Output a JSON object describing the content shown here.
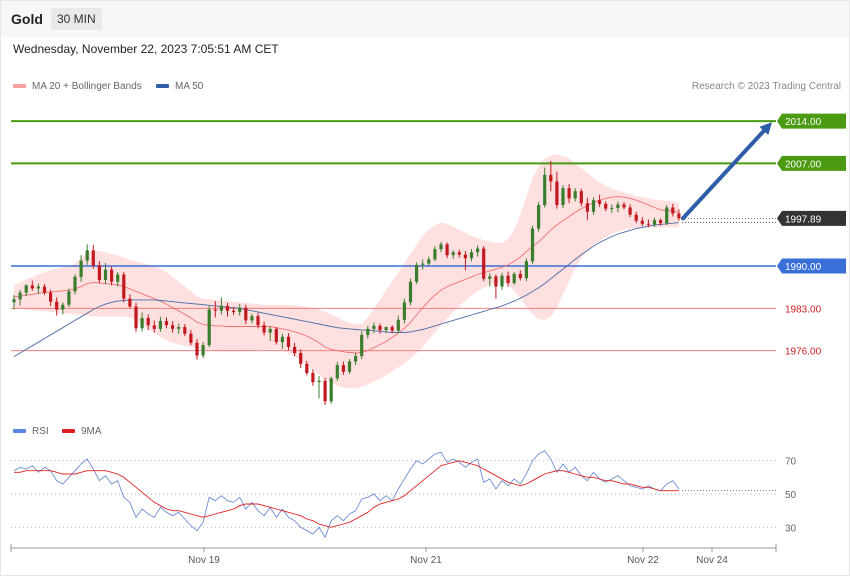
{
  "header": {
    "instrument": "Gold",
    "timeframe": "30 MIN",
    "datetime": "Wednesday, November 22, 2023 7:05:51 AM CET"
  },
  "legend": {
    "ma_bb": "MA 20 + Bollinger Bands",
    "ma50": "MA 50",
    "rsi": "RSI",
    "rsi_ma": "9MA"
  },
  "credit": "Research © 2023 Trading Central",
  "colors": {
    "up": "#3a7d2c",
    "down": "#c2191f",
    "resistance": "#4a9a12",
    "support_red": "#f08080",
    "pivot_blue": "#3a6fd8",
    "ma50": "#4a6aa8",
    "bands": "#ffd6d6",
    "rsi": "#6d8fd8",
    "rsi_ma": "#e02020",
    "arrow": "#2f5ea8",
    "price_tag": "#333333"
  },
  "chart_data": {
    "type": "candlestick",
    "ylim": [
      1966.5,
      2016.5
    ],
    "x_ticks": [
      "Nov 19",
      "Nov 21",
      "Nov 22",
      "Nov 24"
    ],
    "levels": [
      {
        "label": "2014.00",
        "value": 2014.0,
        "kind": "resistance"
      },
      {
        "label": "2007.00",
        "value": 2007.0,
        "kind": "resistance"
      },
      {
        "label": "1997.89",
        "value": 1997.89,
        "kind": "last"
      },
      {
        "label": "1990.00",
        "value": 1990.0,
        "kind": "pivot"
      },
      {
        "label": "1983.00",
        "value": 1983.0,
        "kind": "support"
      },
      {
        "label": "1976.00",
        "value": 1976.0,
        "kind": "support"
      }
    ],
    "forecast_arrow": {
      "from": 1997.9,
      "to": 2014.0
    },
    "candles": [
      [
        1984.0,
        1985.2,
        1982.8,
        1984.5
      ],
      [
        1984.5,
        1986.0,
        1983.5,
        1985.6
      ],
      [
        1985.6,
        1987.0,
        1985.0,
        1986.8
      ],
      [
        1986.8,
        1987.6,
        1985.9,
        1986.3
      ],
      [
        1986.3,
        1987.1,
        1985.4,
        1986.6
      ],
      [
        1986.6,
        1987.0,
        1985.2,
        1985.6
      ],
      [
        1985.6,
        1986.1,
        1983.4,
        1984.1
      ],
      [
        1984.1,
        1984.8,
        1981.8,
        1982.8
      ],
      [
        1982.8,
        1984.0,
        1982.0,
        1983.6
      ],
      [
        1983.6,
        1986.3,
        1983.2,
        1985.8
      ],
      [
        1985.8,
        1988.6,
        1985.3,
        1988.2
      ],
      [
        1988.2,
        1991.8,
        1987.4,
        1990.9
      ],
      [
        1990.9,
        1993.6,
        1990.2,
        1992.6
      ],
      [
        1992.6,
        1993.5,
        1989.6,
        1990.1
      ],
      [
        1990.1,
        1990.8,
        1987.2,
        1987.7
      ],
      [
        1987.7,
        1990.5,
        1987.0,
        1989.4
      ],
      [
        1989.4,
        1989.9,
        1986.8,
        1987.4
      ],
      [
        1987.4,
        1989.0,
        1986.6,
        1988.6
      ],
      [
        1988.6,
        1989.0,
        1984.0,
        1984.6
      ],
      [
        1984.6,
        1985.3,
        1983.0,
        1983.3
      ],
      [
        1983.3,
        1983.9,
        1979.1,
        1979.7
      ],
      [
        1979.7,
        1982.3,
        1979.2,
        1981.4
      ],
      [
        1981.4,
        1982.0,
        1979.4,
        1980.2
      ],
      [
        1980.2,
        1981.0,
        1979.0,
        1979.6
      ],
      [
        1979.6,
        1981.6,
        1979.1,
        1980.9
      ],
      [
        1980.9,
        1981.5,
        1979.7,
        1980.2
      ],
      [
        1980.2,
        1980.9,
        1979.0,
        1979.6
      ],
      [
        1979.6,
        1980.5,
        1978.8,
        1979.9
      ],
      [
        1979.9,
        1980.4,
        1978.4,
        1978.8
      ],
      [
        1978.8,
        1979.4,
        1976.9,
        1977.3
      ],
      [
        1977.3,
        1977.9,
        1974.5,
        1975.2
      ],
      [
        1975.2,
        1977.4,
        1974.8,
        1976.9
      ],
      [
        1976.9,
        1983.4,
        1976.6,
        1982.8
      ],
      [
        1982.8,
        1984.2,
        1981.5,
        1982.6
      ],
      [
        1982.6,
        1984.8,
        1982.0,
        1983.4
      ],
      [
        1983.4,
        1983.9,
        1981.6,
        1982.6
      ],
      [
        1982.6,
        1983.2,
        1981.9,
        1982.4
      ],
      [
        1982.4,
        1983.7,
        1981.8,
        1983.1
      ],
      [
        1983.1,
        1983.6,
        1980.4,
        1981.0
      ],
      [
        1981.0,
        1982.1,
        1980.5,
        1981.7
      ],
      [
        1981.7,
        1982.2,
        1979.7,
        1980.2
      ],
      [
        1980.2,
        1980.8,
        1978.5,
        1979.0
      ],
      [
        1979.0,
        1980.0,
        1977.6,
        1979.6
      ],
      [
        1979.6,
        1979.9,
        1977.0,
        1977.4
      ],
      [
        1977.4,
        1978.8,
        1976.3,
        1978.3
      ],
      [
        1978.3,
        1978.9,
        1976.1,
        1976.6
      ],
      [
        1976.6,
        1977.3,
        1975.1,
        1975.6
      ],
      [
        1975.6,
        1976.2,
        1973.1,
        1973.8
      ],
      [
        1973.8,
        1974.3,
        1971.9,
        1972.3
      ],
      [
        1972.3,
        1972.9,
        1970.2,
        1970.8
      ],
      [
        1970.8,
        1971.8,
        1968.1,
        1971.0
      ],
      [
        1971.0,
        1971.5,
        1967.0,
        1967.6
      ],
      [
        1967.6,
        1971.7,
        1967.2,
        1971.4
      ],
      [
        1971.4,
        1974.1,
        1971.0,
        1973.6
      ],
      [
        1973.6,
        1974.2,
        1972.0,
        1972.5
      ],
      [
        1972.5,
        1974.6,
        1972.2,
        1974.2
      ],
      [
        1974.2,
        1975.6,
        1973.6,
        1975.1
      ],
      [
        1975.1,
        1979.2,
        1974.6,
        1978.6
      ],
      [
        1978.6,
        1980.1,
        1978.0,
        1979.6
      ],
      [
        1979.6,
        1980.6,
        1978.9,
        1980.1
      ],
      [
        1980.1,
        1980.5,
        1978.8,
        1979.4
      ],
      [
        1979.4,
        1980.0,
        1978.9,
        1979.9
      ],
      [
        1979.9,
        1980.2,
        1978.9,
        1979.3
      ],
      [
        1979.3,
        1981.8,
        1978.9,
        1981.1
      ],
      [
        1981.1,
        1984.6,
        1980.5,
        1984.0
      ],
      [
        1984.0,
        1987.9,
        1983.5,
        1987.4
      ],
      [
        1987.4,
        1990.6,
        1987.0,
        1990.2
      ],
      [
        1990.2,
        1991.1,
        1989.4,
        1990.4
      ],
      [
        1990.4,
        1991.6,
        1990.0,
        1991.1
      ],
      [
        1991.1,
        1993.3,
        1990.8,
        1992.8
      ],
      [
        1992.8,
        1994.0,
        1992.3,
        1993.6
      ],
      [
        1993.6,
        1993.9,
        1991.3,
        1991.8
      ],
      [
        1991.8,
        1992.6,
        1991.2,
        1992.3
      ],
      [
        1992.3,
        1992.7,
        1991.4,
        1991.9
      ],
      [
        1991.9,
        1992.5,
        1989.3,
        1991.3
      ],
      [
        1991.3,
        1992.8,
        1990.8,
        1992.3
      ],
      [
        1992.3,
        1993.4,
        1991.6,
        1992.9
      ],
      [
        1992.9,
        1993.3,
        1987.5,
        1987.9
      ],
      [
        1987.9,
        1988.8,
        1986.6,
        1988.3
      ],
      [
        1988.3,
        1988.6,
        1984.6,
        1986.6
      ],
      [
        1986.6,
        1988.9,
        1986.1,
        1988.4
      ],
      [
        1988.4,
        1989.1,
        1986.6,
        1987.2
      ],
      [
        1987.2,
        1989.0,
        1986.9,
        1988.7
      ],
      [
        1988.7,
        1989.3,
        1987.6,
        1988.0
      ],
      [
        1988.0,
        1991.3,
        1987.5,
        1990.8
      ],
      [
        1990.8,
        1996.7,
        1990.3,
        1996.2
      ],
      [
        1996.2,
        2000.6,
        1995.7,
        2000.1
      ],
      [
        2000.1,
        2006.3,
        1999.7,
        2005.1
      ],
      [
        2005.1,
        2007.4,
        2002.4,
        2004.0
      ],
      [
        2004.0,
        2005.6,
        1999.5,
        2000.1
      ],
      [
        2000.1,
        2003.4,
        1999.6,
        2002.9
      ],
      [
        2002.9,
        2003.6,
        2000.4,
        2001.2
      ],
      [
        2001.2,
        2002.9,
        2000.7,
        2002.4
      ],
      [
        2002.4,
        2002.8,
        1999.9,
        2000.4
      ],
      [
        2000.4,
        2001.3,
        1997.6,
        1999.0
      ],
      [
        1999.0,
        2001.4,
        1998.5,
        2000.9
      ],
      [
        2000.9,
        2001.8,
        1999.8,
        2000.3
      ],
      [
        2000.3,
        2000.7,
        1999.1,
        1999.5
      ],
      [
        1999.5,
        2000.2,
        1998.8,
        1999.6
      ],
      [
        1999.6,
        2000.7,
        1998.9,
        2000.2
      ],
      [
        2000.2,
        2000.6,
        1999.4,
        1999.7
      ],
      [
        1999.7,
        2000.2,
        1998.1,
        1998.5
      ],
      [
        1998.5,
        1999.0,
        1997.1,
        1997.5
      ],
      [
        1997.5,
        1998.1,
        1996.6,
        1997.0
      ],
      [
        1997.0,
        1997.7,
        1996.4,
        1996.9
      ],
      [
        1996.9,
        1998.0,
        1996.5,
        1997.6
      ],
      [
        1997.6,
        1997.9,
        1996.7,
        1997.1
      ],
      [
        1997.1,
        2000.1,
        1996.8,
        1999.7
      ],
      [
        1999.7,
        2000.3,
        1998.2,
        1998.7
      ],
      [
        1998.7,
        1999.4,
        1997.5,
        1997.9
      ]
    ],
    "ma20": [
      1984.9,
      1985.0,
      1985.2,
      1985.3,
      1985.5,
      1985.6,
      1985.7,
      1985.8,
      1985.9,
      1986.0,
      1986.2,
      1986.6,
      1987.1,
      1987.3,
      1987.2,
      1987.1,
      1987.0,
      1986.9,
      1986.6,
      1986.2,
      1985.8,
      1985.4,
      1985.0,
      1984.6,
      1984.2,
      1983.7,
      1983.1,
      1982.6,
      1982.0,
      1981.4,
      1980.7,
      1980.3,
      1980.2,
      1980.1,
      1980.1,
      1980.0,
      1980.0,
      1980.0,
      1980.0,
      1980.0,
      1980.0,
      1980.0,
      1980.0,
      1979.8,
      1979.6,
      1979.4,
      1979.1,
      1978.8,
      1978.4,
      1977.9,
      1977.3,
      1976.6,
      1976.2,
      1976.0,
      1975.8,
      1975.7,
      1975.6,
      1975.7,
      1976.0,
      1976.5,
      1977.0,
      1977.5,
      1978.2,
      1978.9,
      1979.7,
      1980.7,
      1981.9,
      1983.1,
      1984.2,
      1985.2,
      1986.0,
      1986.6,
      1987.0,
      1987.4,
      1987.8,
      1988.2,
      1988.6,
      1988.9,
      1989.2,
      1989.5,
      1989.8,
      1990.2,
      1990.8,
      1991.5,
      1992.4,
      1993.2,
      1994.0,
      1995.0,
      1996.0,
      1996.8,
      1997.5,
      1998.2,
      1998.9,
      1999.5,
      2000.0,
      2000.5,
      2000.9,
      2001.2,
      2001.4,
      2001.5,
      2001.4,
      2001.2,
      2000.9,
      2000.5,
      2000.1,
      1999.7,
      1999.3,
      1999.2,
      1999.1,
      1998.9
    ],
    "bb_upper": [
      1986.8,
      1987.3,
      1987.8,
      1988.2,
      1988.6,
      1989.0,
      1989.3,
      1989.6,
      1989.8,
      1990.0,
      1990.4,
      1991.3,
      1992.2,
      1992.6,
      1992.5,
      1992.3,
      1992.0,
      1991.8,
      1991.4,
      1991.0,
      1990.8,
      1990.5,
      1990.3,
      1990.0,
      1989.6,
      1989.0,
      1988.2,
      1987.4,
      1986.6,
      1985.8,
      1985.0,
      1984.6,
      1984.5,
      1984.4,
      1984.3,
      1984.2,
      1984.1,
      1984.0,
      1983.9,
      1983.8,
      1983.7,
      1983.6,
      1983.6,
      1983.6,
      1983.6,
      1983.5,
      1983.5,
      1983.4,
      1983.2,
      1983.0,
      1982.8,
      1982.5,
      1982.0,
      1981.5,
      1981.0,
      1980.6,
      1980.3,
      1980.5,
      1981.5,
      1983.0,
      1984.5,
      1986.0,
      1987.5,
      1989.0,
      1990.5,
      1992.0,
      1993.5,
      1995.0,
      1996.0,
      1996.8,
      1997.2,
      1997.0,
      1996.5,
      1996.0,
      1995.5,
      1995.0,
      1994.6,
      1994.3,
      1994.0,
      1993.8,
      1993.8,
      1994.5,
      1996.0,
      1998.5,
      2001.5,
      2004.5,
      2006.5,
      2007.8,
      2008.3,
      2008.5,
      2008.2,
      2007.8,
      2007.0,
      2006.2,
      2005.4,
      2004.6,
      2003.9,
      2003.3,
      2002.8,
      2002.5,
      2002.2,
      2001.9,
      2001.6,
      2001.4,
      2001.2,
      2001.0,
      2000.9,
      2000.8,
      2000.7,
      2000.5
    ],
    "bb_lower": [
      1983.0,
      1982.9,
      1982.8,
      1982.7,
      1982.6,
      1982.5,
      1982.4,
      1982.3,
      1982.2,
      1982.1,
      1982.0,
      1981.9,
      1981.8,
      1981.7,
      1981.6,
      1981.6,
      1981.6,
      1981.6,
      1981.6,
      1981.5,
      1981.0,
      1980.3,
      1979.6,
      1978.9,
      1978.2,
      1977.7,
      1977.3,
      1977.0,
      1976.8,
      1976.6,
      1976.4,
      1976.2,
      1976.1,
      1976.0,
      1975.9,
      1975.9,
      1975.9,
      1975.9,
      1976.0,
      1976.0,
      1976.1,
      1976.1,
      1976.2,
      1976.2,
      1976.0,
      1975.6,
      1975.0,
      1974.4,
      1973.6,
      1972.8,
      1972.0,
      1971.2,
      1970.6,
      1970.2,
      1969.9,
      1969.8,
      1969.8,
      1970.0,
      1970.4,
      1970.9,
      1971.4,
      1971.9,
      1972.6,
      1973.2,
      1973.9,
      1974.7,
      1975.6,
      1976.6,
      1977.8,
      1979.0,
      1980.2,
      1981.3,
      1982.4,
      1983.4,
      1984.3,
      1985.1,
      1985.8,
      1986.4,
      1986.9,
      1987.2,
      1987.3,
      1986.9,
      1985.9,
      1984.7,
      1983.3,
      1982.0,
      1981.2,
      1981.1,
      1981.6,
      1983.1,
      1985.3,
      1987.5,
      1989.6,
      1991.3,
      1992.6,
      1993.5,
      1994.2,
      1994.8,
      1995.3,
      1995.7,
      1996.0,
      1996.2,
      1996.3,
      1996.4,
      1996.4,
      1996.4,
      1996.4,
      1996.4,
      1996.4,
      1996.4
    ],
    "ma50": [
      1975.0,
      1975.6,
      1976.2,
      1976.8,
      1977.4,
      1978.0,
      1978.6,
      1979.2,
      1979.8,
      1980.4,
      1981.0,
      1981.6,
      1982.2,
      1982.8,
      1983.3,
      1983.7,
      1984.0,
      1984.2,
      1984.3,
      1984.4,
      1984.4,
      1984.4,
      1984.4,
      1984.4,
      1984.3,
      1984.2,
      1984.1,
      1984.0,
      1983.9,
      1983.8,
      1983.7,
      1983.6,
      1983.5,
      1983.4,
      1983.3,
      1983.2,
      1983.1,
      1983.0,
      1982.8,
      1982.6,
      1982.4,
      1982.2,
      1982.0,
      1981.8,
      1981.6,
      1981.4,
      1981.2,
      1981.0,
      1980.8,
      1980.6,
      1980.4,
      1980.2,
      1980.0,
      1979.8,
      1979.7,
      1979.6,
      1979.5,
      1979.4,
      1979.4,
      1979.3,
      1979.2,
      1979.1,
      1979.0,
      1979.0,
      1979.0,
      1979.1,
      1979.3,
      1979.5,
      1979.8,
      1980.1,
      1980.4,
      1980.7,
      1981.0,
      1981.3,
      1981.6,
      1981.9,
      1982.2,
      1982.5,
      1982.8,
      1983.1,
      1983.4,
      1983.8,
      1984.2,
      1984.7,
      1985.2,
      1985.8,
      1986.4,
      1987.1,
      1987.9,
      1988.7,
      1989.5,
      1990.3,
      1991.1,
      1991.9,
      1992.6,
      1993.3,
      1993.9,
      1994.4,
      1994.9,
      1995.3,
      1995.6,
      1995.9,
      1996.2,
      1996.4,
      1996.6,
      1996.8,
      1996.9,
      1997.0,
      1997.1,
      1997.2
    ],
    "rsi": {
      "ylim": [
        20,
        80
      ],
      "ticks": [
        70,
        50,
        30
      ],
      "rsi": [
        64,
        66,
        65,
        67,
        63,
        66,
        64,
        58,
        56,
        60,
        64,
        68,
        71,
        65,
        58,
        61,
        56,
        58,
        48,
        45,
        36,
        41,
        38,
        36,
        42,
        39,
        37,
        39,
        35,
        31,
        28,
        33,
        48,
        46,
        49,
        46,
        45,
        48,
        41,
        45,
        40,
        37,
        42,
        36,
        41,
        36,
        34,
        30,
        28,
        26,
        30,
        24,
        34,
        37,
        34,
        38,
        40,
        47,
        48,
        50,
        46,
        49,
        46,
        53,
        59,
        65,
        70,
        68,
        71,
        74,
        75,
        69,
        71,
        69,
        66,
        69,
        71,
        57,
        59,
        53,
        58,
        55,
        59,
        56,
        62,
        70,
        74,
        76,
        71,
        63,
        68,
        63,
        66,
        61,
        58,
        63,
        59,
        57,
        59,
        61,
        58,
        55,
        54,
        53,
        55,
        53,
        52,
        56,
        58,
        53
      ],
      "ma9": [
        63,
        63,
        64,
        64,
        64,
        64,
        64,
        63,
        62,
        62,
        62,
        63,
        64,
        64,
        64,
        64,
        63,
        62,
        60,
        57,
        54,
        51,
        48,
        45,
        43,
        41,
        40,
        40,
        39,
        38,
        37,
        36,
        37,
        38,
        39,
        40,
        41,
        43,
        44,
        44,
        44,
        43,
        42,
        41,
        40,
        39,
        38,
        37,
        35,
        34,
        32,
        31,
        30,
        31,
        32,
        33,
        35,
        37,
        39,
        42,
        44,
        45,
        46,
        47,
        49,
        52,
        55,
        58,
        61,
        64,
        67,
        68,
        69,
        70,
        69,
        68,
        67,
        65,
        63,
        61,
        59,
        57,
        56,
        55,
        56,
        58,
        60,
        62,
        63,
        64,
        64,
        63,
        62,
        61,
        60,
        60,
        59,
        58,
        58,
        57,
        56,
        56,
        55,
        54,
        54,
        53,
        52,
        52,
        52,
        52
      ]
    }
  }
}
